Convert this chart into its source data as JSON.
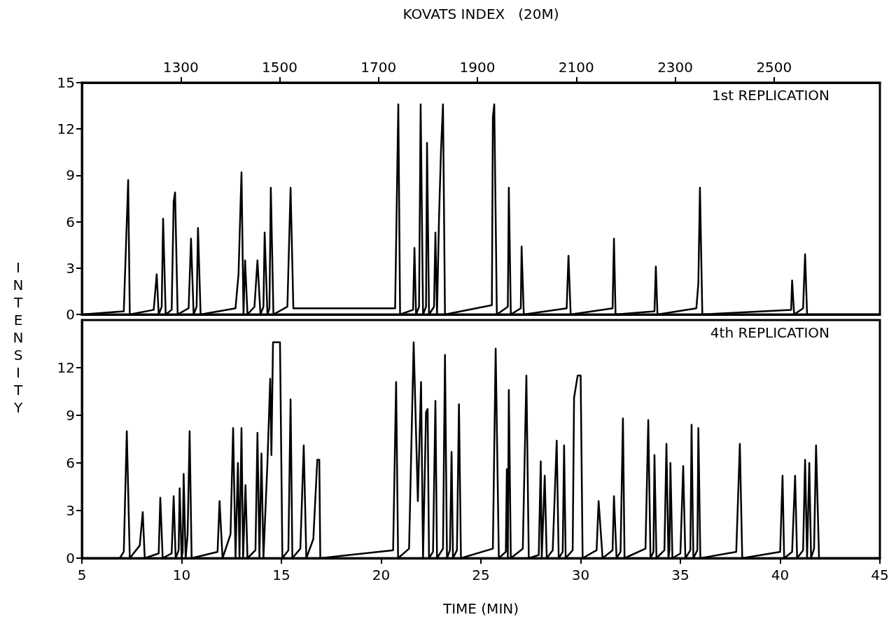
{
  "chart_data": [
    {
      "type": "line",
      "x2label": "KOVATS INDEX   (20M)",
      "ylabel": "INTENSITY",
      "annotations": [
        "1st REPLICATION"
      ],
      "xlim": [
        5,
        45
      ],
      "x2lim": [
        1100,
        2714
      ],
      "x2ticks": [
        1300,
        1500,
        1700,
        1900,
        2100,
        2300,
        2500
      ],
      "ylim": [
        0,
        15
      ],
      "yticks": [
        0,
        3,
        6,
        9,
        12,
        15
      ],
      "tick_labels": "y",
      "grid": false,
      "marker": "none",
      "line_style": "solid",
      "series": [
        {
          "color": "#000000",
          "x": [
            5,
            7.1,
            7.32,
            7.4,
            8.6,
            8.75,
            8.85,
            9.0,
            9.07,
            9.2,
            9.5,
            9.6,
            9.67,
            9.8,
            10.35,
            10.47,
            10.6,
            10.75,
            10.82,
            10.95,
            12.7,
            12.85,
            13.0,
            13.1,
            13.18,
            13.3,
            13.65,
            13.8,
            13.95,
            14.1,
            14.16,
            14.3,
            14.4,
            14.47,
            14.6,
            15.3,
            15.46,
            15.6,
            20.7,
            20.86,
            20.95,
            21.6,
            21.67,
            21.75,
            21.9,
            21.98,
            22.1,
            22.25,
            22.3,
            22.4,
            22.65,
            22.72,
            22.8,
            22.9,
            23.0,
            23.1,
            23.2,
            25.55,
            25.6,
            25.67,
            25.8,
            26.35,
            26.4,
            26.5,
            27.0,
            27.04,
            27.15,
            29.3,
            29.39,
            29.5,
            31.6,
            31.67,
            31.75,
            33.7,
            33.77,
            33.85,
            35.8,
            35.9,
            35.98,
            36.1,
            40.55,
            40.6,
            40.7,
            41.15,
            41.25,
            41.35,
            45
          ],
          "values": [
            0,
            0.2,
            8.7,
            0,
            0.3,
            2.6,
            0,
            0.5,
            6.2,
            0,
            0.3,
            7.3,
            7.9,
            0,
            0.4,
            4.9,
            0,
            0.5,
            5.6,
            0,
            0.4,
            2.6,
            9.2,
            0,
            3.5,
            0,
            0.5,
            3.5,
            0,
            0.5,
            5.3,
            0,
            0.4,
            8.2,
            0,
            0.5,
            8.2,
            0.4,
            0.4,
            13.6,
            0,
            0.3,
            4.3,
            0,
            0.5,
            13.6,
            0,
            0.5,
            11.1,
            0,
            0.5,
            5.3,
            0,
            6.2,
            10.6,
            13.6,
            0,
            0.6,
            12.8,
            13.6,
            0,
            0.5,
            8.2,
            0,
            0.4,
            4.4,
            0,
            0.4,
            3.8,
            0,
            0.4,
            4.9,
            0,
            0.2,
            3.1,
            0,
            0.4,
            2,
            8.2,
            0,
            0.3,
            2.2,
            0,
            0.4,
            3.9,
            0,
            0
          ]
        }
      ]
    },
    {
      "type": "line",
      "xlabel": "TIME (MIN)",
      "annotations": [
        "4th REPLICATION"
      ],
      "xlim": [
        5,
        45
      ],
      "xticks": [
        5,
        10,
        15,
        20,
        25,
        30,
        35,
        40,
        45
      ],
      "ylim": [
        0,
        15
      ],
      "yticks": [
        0,
        3,
        6,
        9,
        12
      ],
      "grid": false,
      "marker": "none",
      "line_style": "solid",
      "series": [
        {
          "color": "#000000",
          "x": [
            5,
            6.9,
            7.1,
            7.25,
            7.4,
            7.9,
            8.05,
            8.15,
            8.85,
            8.93,
            9.05,
            9.5,
            9.6,
            9.7,
            9.85,
            9.9,
            10.0,
            10.05,
            10.1,
            10.2,
            10.3,
            10.4,
            10.5,
            11.8,
            11.9,
            12.05,
            12.45,
            12.58,
            12.7,
            12.82,
            12.9,
            13.0,
            13.08,
            13.2,
            13.3,
            13.7,
            13.8,
            13.9,
            14.0,
            14.1,
            14.3,
            14.44,
            14.5,
            14.58,
            14.93,
            15.05,
            15.35,
            15.46,
            15.55,
            15.95,
            16.12,
            16.25,
            16.6,
            16.8,
            16.9,
            16.95,
            20.6,
            20.75,
            20.85,
            21.4,
            21.63,
            21.84,
            22.0,
            22.1,
            22.25,
            22.33,
            22.4,
            22.6,
            22.72,
            22.8,
            23.1,
            23.2,
            23.3,
            23.45,
            23.53,
            23.6,
            23.8,
            23.9,
            24.0,
            25.6,
            25.74,
            25.9,
            26.25,
            26.3,
            26.35,
            26.4,
            26.5,
            27.1,
            27.28,
            27.4,
            27.9,
            28.0,
            28.05,
            28.2,
            28.3,
            28.6,
            28.8,
            28.9,
            29.1,
            29.17,
            29.25,
            29.6,
            29.67,
            29.85,
            30.0,
            30.1,
            30.8,
            30.9,
            31.1,
            31.6,
            31.67,
            31.8,
            32.0,
            32.12,
            32.2,
            33.25,
            33.39,
            33.5,
            33.65,
            33.7,
            33.8,
            34.2,
            34.3,
            34.4,
            34.45,
            34.5,
            34.6,
            35.0,
            35.14,
            35.25,
            35.5,
            35.56,
            35.65,
            35.85,
            35.9,
            36.0,
            37.8,
            37.98,
            38.1,
            40.0,
            40.12,
            40.2,
            40.6,
            40.75,
            40.85,
            41.15,
            41.25,
            41.35,
            41.46,
            41.55,
            41.7,
            41.8,
            41.95,
            45
          ],
          "values": [
            0,
            0,
            0.4,
            8.0,
            0,
            0.8,
            2.9,
            0,
            0.3,
            3.8,
            0,
            0.3,
            3.9,
            0,
            0.5,
            4.4,
            0,
            0.4,
            5.3,
            0,
            1.5,
            8.0,
            0,
            0.4,
            3.6,
            0,
            1.5,
            8.2,
            0,
            6.0,
            0,
            8.2,
            0,
            4.6,
            0,
            0.5,
            7.9,
            0,
            6.6,
            0,
            6.0,
            11.3,
            6.5,
            13.6,
            13.6,
            0,
            0.5,
            10.0,
            0,
            0.6,
            7.1,
            0,
            1.2,
            6.2,
            6.2,
            0,
            0.5,
            11.1,
            0,
            0.6,
            13.6,
            3.6,
            11.1,
            0,
            9.2,
            9.4,
            0,
            0.4,
            9.9,
            0,
            0.6,
            12.8,
            0,
            0.5,
            6.7,
            0,
            0.5,
            9.7,
            0,
            0.6,
            13.2,
            0,
            0.4,
            5.6,
            0,
            10.6,
            0,
            0.6,
            11.5,
            0,
            0.2,
            6.1,
            0,
            5.2,
            0,
            0.5,
            7.4,
            0,
            0.4,
            7.1,
            0,
            0.5,
            10.1,
            11.5,
            11.5,
            0,
            0.5,
            3.6,
            0,
            0.5,
            3.9,
            0,
            0.4,
            8.8,
            0,
            0.6,
            8.7,
            0,
            0.4,
            6.5,
            0,
            0.5,
            7.2,
            0,
            0.5,
            6.0,
            0,
            0.3,
            5.8,
            0,
            0.5,
            8.4,
            0,
            0.5,
            8.2,
            0,
            0.4,
            7.2,
            0,
            0.4,
            5.2,
            0,
            0.4,
            5.2,
            0,
            0.5,
            6.2,
            0,
            6.0,
            0,
            0.6,
            7.1,
            0,
            0
          ]
        }
      ]
    }
  ]
}
